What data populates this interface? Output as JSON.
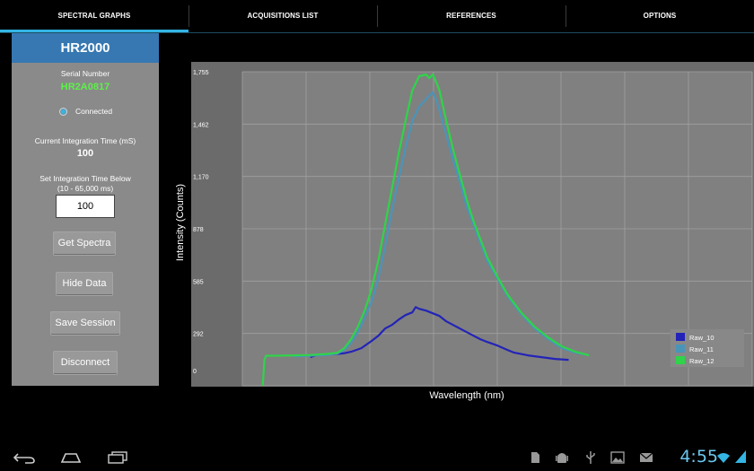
{
  "tabs": [
    {
      "label": "SPECTRAL GRAPHS",
      "active": true
    },
    {
      "label": "ACQUISITIONS LIST",
      "active": false
    },
    {
      "label": "REFERENCES",
      "active": false
    },
    {
      "label": "OPTIONS",
      "active": false
    }
  ],
  "panel": {
    "device": "HR2000",
    "serial_label": "Serial Number",
    "serial_value": "HR2A0817",
    "status": "Connected",
    "integration_label": "Current Integration Time (mS)",
    "integration_value": "100",
    "set_label_line1": "Set Integration Time Below",
    "set_label_line2": "(10 - 65,000 ms)",
    "input_value": "100",
    "buttons": {
      "get_spectra": "Get Spectra",
      "hide_data": "Hide Data",
      "save_session": "Save Session",
      "disconnect": "Disconnect"
    }
  },
  "colors": {
    "raw10": "#2323b8",
    "raw11": "#4a94b8",
    "raw12": "#2fd44a",
    "plot_bg": "#808080",
    "frame_bg": "#6b6b6b",
    "grid": "#a0a0a0"
  },
  "chart_data": {
    "type": "line",
    "xlabel": "Wavelength (nm)",
    "ylabel": "Intensity (Counts)",
    "xlim": [
      100,
      1600
    ],
    "ylim": [
      0,
      1755
    ],
    "xticks": [
      "100",
      "288",
      "475",
      "662",
      "850",
      "1,038",
      "1,225",
      "1,412",
      "1,600"
    ],
    "yticks": [
      "0",
      "292",
      "585",
      "878",
      "1,170",
      "1,462",
      "1,755"
    ],
    "grid": true,
    "legend_position": "bottom-right",
    "series": [
      {
        "name": "Raw_10",
        "color": "#2323b8",
        "x": [
          300,
          320,
          350,
          380,
          400,
          420,
          450,
          480,
          500,
          520,
          540,
          560,
          580,
          600,
          610,
          620,
          640,
          660,
          680,
          700,
          720,
          740,
          760,
          780,
          800,
          820,
          850,
          880,
          900,
          940,
          980,
          1020,
          1060
        ],
        "y": [
          160,
          172,
          175,
          178,
          182,
          190,
          210,
          250,
          280,
          320,
          340,
          370,
          395,
          410,
          440,
          430,
          420,
          405,
          390,
          360,
          340,
          320,
          300,
          280,
          260,
          245,
          225,
          200,
          185,
          170,
          160,
          150,
          145
        ]
      },
      {
        "name": "Raw_11",
        "color": "#4a94b8",
        "x": [
          250,
          300,
          350,
          380,
          400,
          420,
          440,
          460,
          480,
          500,
          520,
          540,
          560,
          580,
          600,
          620,
          640,
          650,
          660,
          670,
          680,
          700,
          720,
          740,
          760,
          780,
          800,
          820,
          850,
          880,
          920,
          960,
          1000,
          1040,
          1080,
          1120
        ],
        "y": [
          165,
          168,
          172,
          180,
          200,
          240,
          300,
          380,
          470,
          600,
          780,
          980,
          1160,
          1330,
          1480,
          1560,
          1600,
          1620,
          1640,
          1600,
          1540,
          1400,
          1260,
          1140,
          1000,
          900,
          800,
          700,
          600,
          500,
          400,
          320,
          260,
          210,
          185,
          170
        ]
      },
      {
        "name": "Raw_12",
        "color": "#2fd44a",
        "x": [
          160,
          165,
          170,
          200,
          250,
          300,
          350,
          380,
          400,
          420,
          440,
          460,
          480,
          500,
          520,
          540,
          560,
          580,
          600,
          620,
          640,
          650,
          660,
          670,
          680,
          700,
          720,
          740,
          760,
          780,
          800,
          820,
          850,
          880,
          920,
          960,
          1000,
          1040,
          1080,
          1120
        ],
        "y": [
          0,
          145,
          168,
          168,
          170,
          172,
          178,
          185,
          210,
          260,
          330,
          420,
          540,
          700,
          900,
          1100,
          1300,
          1480,
          1650,
          1730,
          1740,
          1720,
          1740,
          1700,
          1650,
          1480,
          1320,
          1180,
          1040,
          920,
          820,
          720,
          610,
          510,
          410,
          330,
          270,
          220,
          190,
          170
        ]
      }
    ]
  },
  "system": {
    "clock": "4:55"
  }
}
